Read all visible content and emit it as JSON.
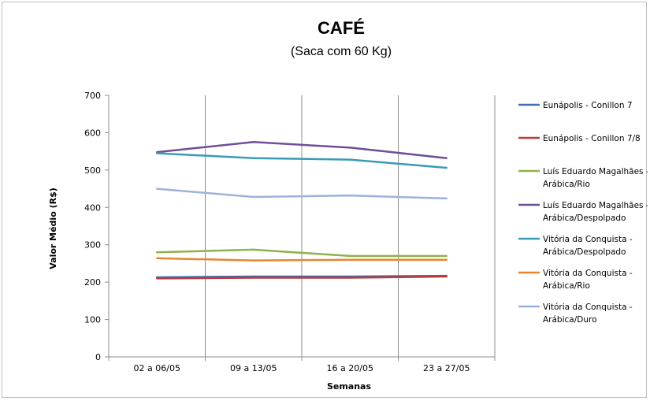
{
  "chart_data": {
    "type": "line",
    "title": "CAFÉ",
    "subtitle": "(Saca com 60 Kg)",
    "xlabel": "Semanas",
    "ylabel": "Valor Médio (R$)",
    "ylim": [
      0,
      700
    ],
    "yticks": [
      "0",
      "100",
      "200",
      "300",
      "400",
      "500",
      "600",
      "700"
    ],
    "categories": [
      "02 a 06/05",
      "09 a 13/05",
      "16 a 20/05",
      "23 a 27/05"
    ],
    "grid": "vertical",
    "legend_position": "right",
    "series": [
      {
        "name": "Eunápolis - Conillon 7",
        "legend_lines": [
          "Eunápolis - Conillon 7"
        ],
        "color": "#3e6fb5",
        "values": [
          213,
          215,
          215,
          217
        ]
      },
      {
        "name": "Eunápolis - Conillon 7/8",
        "legend_lines": [
          "Eunápolis - Conillon 7/8"
        ],
        "color": "#be3b37",
        "values": [
          210,
          212,
          212,
          215
        ]
      },
      {
        "name": "Luís Eduardo Magalhães - Arábica/Rio",
        "legend_lines": [
          "Luís Eduardo Magalhães -",
          "Arábica/Rio"
        ],
        "color": "#8db24d",
        "values": [
          280,
          287,
          270,
          270
        ]
      },
      {
        "name": "Luís Eduardo Magalhães - Arábica/Despolpado",
        "legend_lines": [
          "Luís Eduardo Magalhães -",
          "Arábica/Despolpado"
        ],
        "color": "#6f4f97",
        "values": [
          548,
          575,
          560,
          532
        ]
      },
      {
        "name": "Vitória da Conquista - Arábica/Despolpado",
        "legend_lines": [
          "Vitória da Conquista -",
          "Arábica/Despolpado"
        ],
        "color": "#3a9bb6",
        "values": [
          545,
          532,
          528,
          506
        ]
      },
      {
        "name": "Vitória da Conquista - Arábica/Rio",
        "legend_lines": [
          "Vitória da Conquista -",
          "Arábica/Rio"
        ],
        "color": "#e8852f",
        "values": [
          264,
          258,
          260,
          260
        ]
      },
      {
        "name": "Vitória da Conquista - Arábica/Duro",
        "legend_lines": [
          "Vitória da Conquista -",
          "Arábica/Duro"
        ],
        "color": "#9db2da",
        "values": [
          450,
          428,
          432,
          424
        ]
      }
    ]
  }
}
